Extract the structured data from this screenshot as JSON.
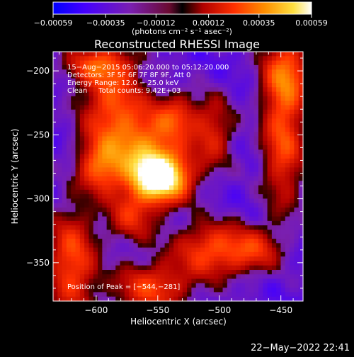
{
  "chart_data": {
    "type": "heatmap",
    "title": "Reconstructed RHESSI Image",
    "xlabel": "Heliocentric X (arcsec)",
    "ylabel": "Heliocentric Y (arcsec)",
    "xlim": [
      -635,
      -432
    ],
    "ylim": [
      -380,
      -185
    ],
    "x_ticks": [
      -600,
      -550,
      -500,
      -450
    ],
    "x_tick_labels": [
      "−600",
      "−550",
      "−500",
      "−450"
    ],
    "y_ticks": [
      -200,
      -250,
      -300,
      -350
    ],
    "y_tick_labels": [
      "−200",
      "−250",
      "−300",
      "−350"
    ],
    "colorbar": {
      "range": [
        -0.00059,
        0.00059
      ],
      "ticks": [
        -0.00059,
        -0.00035,
        -0.00012,
        0.00012,
        0.00035,
        0.00059
      ],
      "tick_labels": [
        "−0.00059",
        "−0.00035",
        "−0.00012",
        "0.00012",
        "0.00035",
        "0.00059"
      ],
      "unit_label": "(photons cm⁻² s⁻¹ asec⁻²)"
    },
    "annotations": [
      "15−Aug−2015 05:06:20.000 to 05:12:20.000",
      "Detectors: 3F 5F 6F 7F 8F 9F, Att 0",
      "Energy Range: 12.0 − 25.0 keV",
      "Clean     Total counts: 9.42E+03"
    ],
    "peak_label": "Position of Peak = [−544,−281]",
    "peak": [
      -544,
      -281
    ],
    "sources": [
      {
        "x": -548,
        "y": -284,
        "sx": 16,
        "sy": 13,
        "amp": 1.0
      },
      {
        "x": -560,
        "y": -262,
        "sx": 22,
        "sy": 22,
        "amp": 0.55
      },
      {
        "x": -588,
        "y": -225,
        "sx": 18,
        "sy": 28,
        "amp": 0.45
      },
      {
        "x": -597,
        "y": -275,
        "sx": 12,
        "sy": 14,
        "amp": 0.45
      },
      {
        "x": -535,
        "y": -235,
        "sx": 12,
        "sy": 12,
        "amp": 0.35
      },
      {
        "x": -505,
        "y": -248,
        "sx": 12,
        "sy": 20,
        "amp": 0.35
      },
      {
        "x": -505,
        "y": -340,
        "sx": 22,
        "sy": 15,
        "amp": 0.5
      },
      {
        "x": -470,
        "y": -340,
        "sx": 14,
        "sy": 12,
        "amp": 0.3
      },
      {
        "x": -448,
        "y": -250,
        "sx": 12,
        "sy": 40,
        "amp": 0.5
      },
      {
        "x": -445,
        "y": -200,
        "sx": 14,
        "sy": 18,
        "amp": 0.4
      },
      {
        "x": -555,
        "y": -370,
        "sx": 22,
        "sy": 14,
        "amp": 0.45
      },
      {
        "x": -620,
        "y": -350,
        "sx": 14,
        "sy": 30,
        "amp": 0.5
      },
      {
        "x": -572,
        "y": -315,
        "sx": 14,
        "sy": 14,
        "amp": 0.35
      },
      {
        "x": -600,
        "y": -195,
        "sx": 20,
        "sy": 10,
        "amp": 0.35
      }
    ]
  },
  "footer": {
    "timestamp": "22−May−2022 22:41"
  }
}
